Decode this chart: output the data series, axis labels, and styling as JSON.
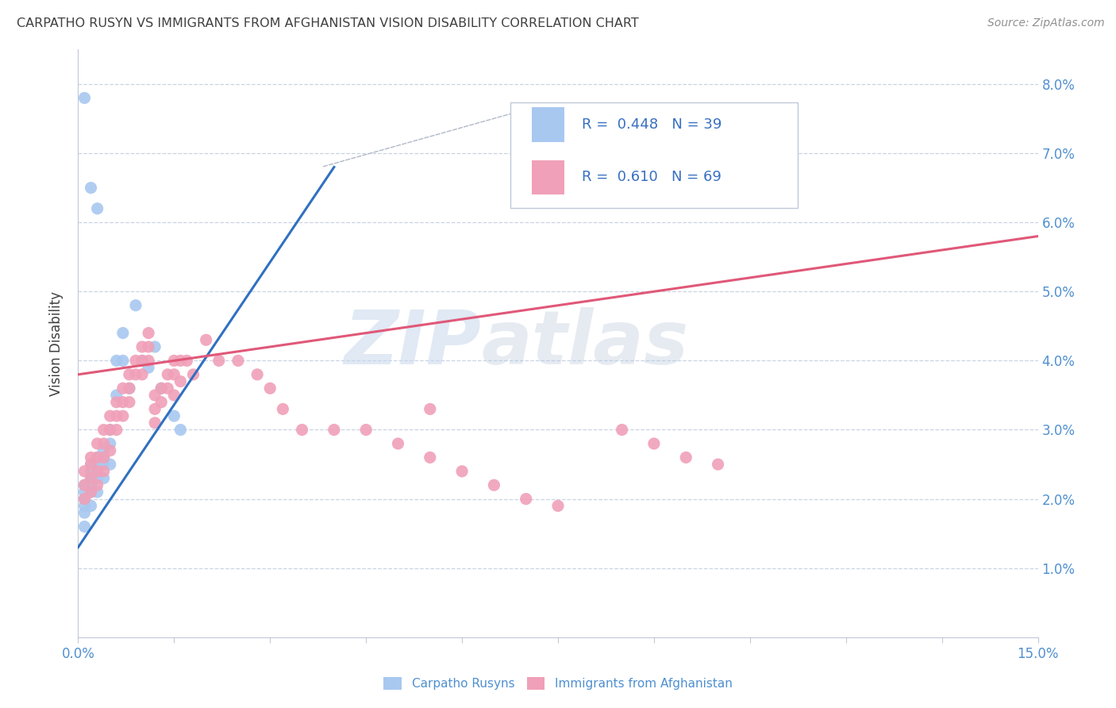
{
  "title": "CARPATHO RUSYN VS IMMIGRANTS FROM AFGHANISTAN VISION DISABILITY CORRELATION CHART",
  "source": "Source: ZipAtlas.com",
  "ylabel": "Vision Disability",
  "xlim": [
    0.0,
    0.15
  ],
  "ylim": [
    0.0,
    0.085
  ],
  "color_blue": "#a8c8f0",
  "color_pink": "#f0a0b8",
  "line_blue": "#3070c0",
  "line_pink": "#e05878",
  "legend_R1": "0.448",
  "legend_N1": "39",
  "legend_R2": "0.610",
  "legend_N2": "69",
  "watermark_zip": "ZIP",
  "watermark_atlas": "atlas",
  "blue_line_x0": 0.0,
  "blue_line_y0": 0.013,
  "blue_line_x1": 0.04,
  "blue_line_y1": 0.068,
  "pink_line_x0": 0.0,
  "pink_line_y0": 0.038,
  "pink_line_x1": 0.15,
  "pink_line_y1": 0.058,
  "blue_x": [
    0.001,
    0.001,
    0.001,
    0.001,
    0.001,
    0.001,
    0.002,
    0.002,
    0.002,
    0.002,
    0.002,
    0.002,
    0.003,
    0.003,
    0.003,
    0.003,
    0.003,
    0.004,
    0.004,
    0.004,
    0.004,
    0.005,
    0.005,
    0.005,
    0.006,
    0.006,
    0.007,
    0.007,
    0.008,
    0.009,
    0.01,
    0.011,
    0.012,
    0.013,
    0.015,
    0.016,
    0.001,
    0.002,
    0.003
  ],
  "blue_y": [
    0.022,
    0.021,
    0.02,
    0.019,
    0.018,
    0.016,
    0.025,
    0.024,
    0.023,
    0.022,
    0.021,
    0.019,
    0.026,
    0.025,
    0.024,
    0.023,
    0.021,
    0.027,
    0.026,
    0.025,
    0.023,
    0.03,
    0.028,
    0.025,
    0.04,
    0.035,
    0.044,
    0.04,
    0.036,
    0.048,
    0.04,
    0.039,
    0.042,
    0.036,
    0.032,
    0.03,
    0.078,
    0.065,
    0.062
  ],
  "pink_x": [
    0.001,
    0.001,
    0.001,
    0.002,
    0.002,
    0.002,
    0.002,
    0.003,
    0.003,
    0.003,
    0.003,
    0.004,
    0.004,
    0.004,
    0.004,
    0.005,
    0.005,
    0.005,
    0.006,
    0.006,
    0.006,
    0.007,
    0.007,
    0.007,
    0.008,
    0.008,
    0.008,
    0.009,
    0.009,
    0.01,
    0.01,
    0.01,
    0.011,
    0.011,
    0.011,
    0.012,
    0.012,
    0.012,
    0.013,
    0.013,
    0.014,
    0.014,
    0.015,
    0.015,
    0.015,
    0.016,
    0.016,
    0.017,
    0.018,
    0.02,
    0.022,
    0.025,
    0.028,
    0.03,
    0.032,
    0.035,
    0.04,
    0.045,
    0.05,
    0.055,
    0.06,
    0.065,
    0.07,
    0.085,
    0.09,
    0.095,
    0.1,
    0.055,
    0.075
  ],
  "pink_y": [
    0.024,
    0.022,
    0.02,
    0.026,
    0.025,
    0.023,
    0.021,
    0.028,
    0.026,
    0.024,
    0.022,
    0.03,
    0.028,
    0.026,
    0.024,
    0.032,
    0.03,
    0.027,
    0.034,
    0.032,
    0.03,
    0.036,
    0.034,
    0.032,
    0.038,
    0.036,
    0.034,
    0.04,
    0.038,
    0.042,
    0.04,
    0.038,
    0.044,
    0.042,
    0.04,
    0.035,
    0.033,
    0.031,
    0.036,
    0.034,
    0.038,
    0.036,
    0.04,
    0.038,
    0.035,
    0.04,
    0.037,
    0.04,
    0.038,
    0.043,
    0.04,
    0.04,
    0.038,
    0.036,
    0.033,
    0.03,
    0.03,
    0.03,
    0.028,
    0.026,
    0.024,
    0.022,
    0.02,
    0.03,
    0.028,
    0.026,
    0.025,
    0.033,
    0.019
  ]
}
